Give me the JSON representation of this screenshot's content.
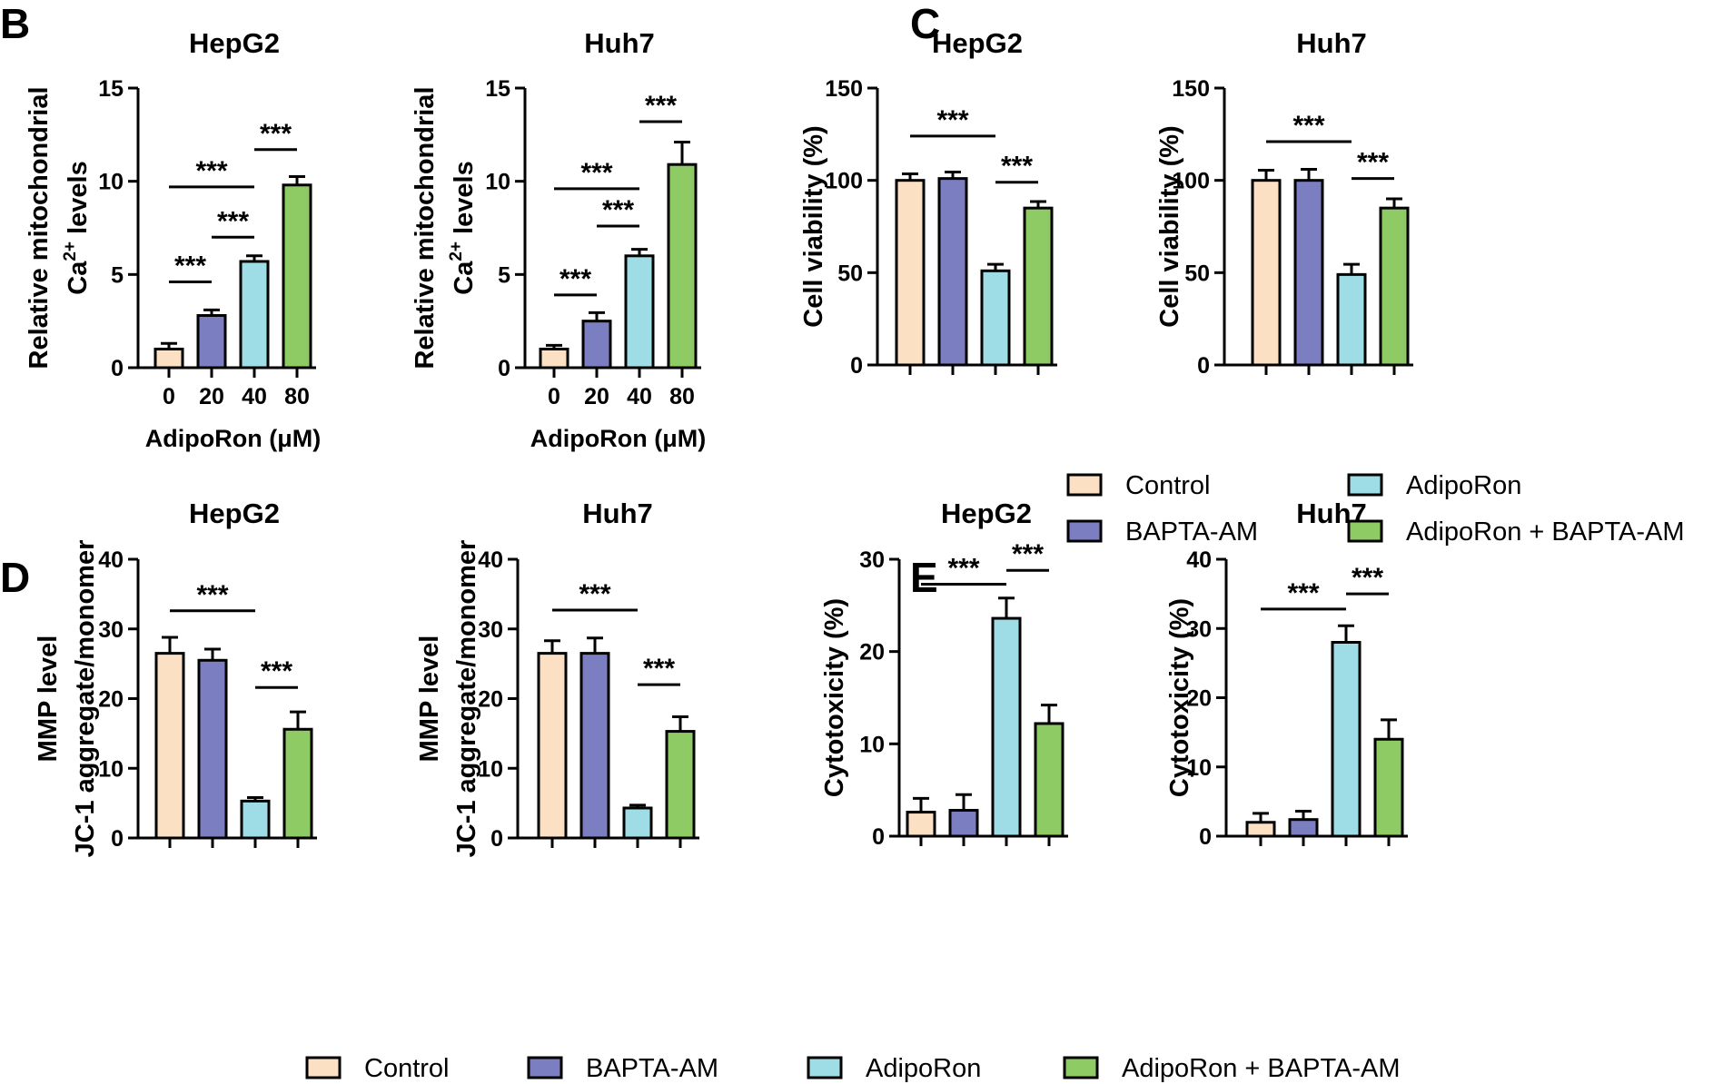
{
  "panels": [
    {
      "letter": "B"
    },
    {
      "letter": "C"
    },
    {
      "letter": "D"
    },
    {
      "letter": "E"
    }
  ],
  "colors": {
    "Control": "#fce0c4",
    "BAPTA-AM": "#7b7ec0",
    "AdipoRon": "#9fdde6",
    "AdipoRon + BAPTA-AM": "#8ecb65",
    "axis": "#000000"
  },
  "legend_c": [
    "Control",
    "AdipoRon",
    "BAPTA-AM",
    "AdipoRon + BAPTA-AM"
  ],
  "legend_bottom": [
    "Control",
    "BAPTA-AM",
    "AdipoRon",
    "AdipoRon + BAPTA-AM"
  ],
  "chart_data": [
    {
      "id": "B-HepG2",
      "type": "bar",
      "title": "HepG2",
      "ylabel": [
        "Relative mitochondrial",
        "Ca",
        "2+",
        " levels"
      ],
      "xlabel": "AdipoRon (μM)",
      "categories": [
        "0",
        "20",
        "40",
        "80"
      ],
      "groups": [
        "Control",
        "BAPTA-AM",
        "AdipoRon",
        "AdipoRon + BAPTA-AM"
      ],
      "values": [
        1.0,
        2.8,
        5.7,
        9.8
      ],
      "errors": [
        0.3,
        0.3,
        0.3,
        0.45
      ],
      "ylim": [
        0,
        15
      ],
      "yticks": [
        0,
        5,
        10,
        15
      ],
      "yticklabels": [
        "0",
        "5",
        "10",
        "15"
      ],
      "significance": [
        {
          "from": 0,
          "to": 1,
          "y": 4.6,
          "label": "***"
        },
        {
          "from": 1,
          "to": 2,
          "y": 7.0,
          "label": "***"
        },
        {
          "from": 0,
          "to": 2,
          "y": 9.7,
          "label": "***"
        },
        {
          "from": 2,
          "to": 3,
          "y": 11.7,
          "label": "***"
        }
      ]
    },
    {
      "id": "B-Huh7",
      "type": "bar",
      "title": "Huh7",
      "ylabel": [
        "Relative mitochondrial",
        "Ca",
        "2+",
        " levels"
      ],
      "xlabel": "AdipoRon (μM)",
      "categories": [
        "0",
        "20",
        "40",
        "80"
      ],
      "groups": [
        "Control",
        "BAPTA-AM",
        "AdipoRon",
        "AdipoRon + BAPTA-AM"
      ],
      "values": [
        1.0,
        2.5,
        6.0,
        10.9
      ],
      "errors": [
        0.2,
        0.45,
        0.35,
        1.2
      ],
      "ylim": [
        0,
        15
      ],
      "yticks": [
        0,
        5,
        10,
        15
      ],
      "yticklabels": [
        "0",
        "5",
        "10",
        "15"
      ],
      "significance": [
        {
          "from": 0,
          "to": 1,
          "y": 3.9,
          "label": "***"
        },
        {
          "from": 1,
          "to": 2,
          "y": 7.6,
          "label": "***"
        },
        {
          "from": 0,
          "to": 2,
          "y": 9.6,
          "label": "***"
        },
        {
          "from": 2,
          "to": 3,
          "y": 13.2,
          "label": "***"
        }
      ]
    },
    {
      "id": "C-HepG2",
      "type": "bar",
      "title": "HepG2",
      "ylabel": [
        "Cell viability (%)"
      ],
      "xlabel": "",
      "categories": [
        "",
        "",
        "",
        ""
      ],
      "groups": [
        "Control",
        "BAPTA-AM",
        "AdipoRon",
        "AdipoRon + BAPTA-AM"
      ],
      "values": [
        100,
        101,
        51,
        85
      ],
      "errors": [
        3.5,
        3.5,
        3.5,
        3.5
      ],
      "ylim": [
        0,
        150
      ],
      "yticks": [
        0,
        50,
        100,
        150
      ],
      "yticklabels": [
        "0",
        "50",
        "100",
        "150"
      ],
      "significance": [
        {
          "from": 0,
          "to": 2,
          "y": 124,
          "label": "***"
        },
        {
          "from": 2,
          "to": 3,
          "y": 99,
          "label": "***"
        }
      ]
    },
    {
      "id": "C-Huh7",
      "type": "bar",
      "title": "Huh7",
      "ylabel": [
        "Cell viability (%)"
      ],
      "xlabel": "",
      "categories": [
        "",
        "",
        "",
        ""
      ],
      "groups": [
        "Control",
        "BAPTA-AM",
        "AdipoRon",
        "AdipoRon + BAPTA-AM"
      ],
      "values": [
        100,
        100,
        49,
        85
      ],
      "errors": [
        5.5,
        6,
        5.5,
        5
      ],
      "ylim": [
        0,
        150
      ],
      "yticks": [
        0,
        50,
        100,
        150
      ],
      "yticklabels": [
        "0",
        "50",
        "100",
        "150"
      ],
      "significance": [
        {
          "from": 0,
          "to": 2,
          "y": 121,
          "label": "***"
        },
        {
          "from": 2,
          "to": 3,
          "y": 101,
          "label": "***"
        }
      ]
    },
    {
      "id": "D-HepG2",
      "type": "bar",
      "title": "HepG2",
      "ylabel": [
        "MMP level",
        "JC-1 aggregate/monomer"
      ],
      "xlabel": "",
      "categories": [
        "",
        "",
        "",
        ""
      ],
      "groups": [
        "Control",
        "BAPTA-AM",
        "AdipoRon",
        "AdipoRon + BAPTA-AM"
      ],
      "values": [
        26.5,
        25.5,
        5.3,
        15.6
      ],
      "errors": [
        2.3,
        1.6,
        0.5,
        2.5
      ],
      "ylim": [
        0,
        40
      ],
      "yticks": [
        0,
        10,
        20,
        30,
        40
      ],
      "yticklabels": [
        "0",
        "10",
        "20",
        "30",
        "40"
      ],
      "significance": [
        {
          "from": 0,
          "to": 2,
          "y": 32.6,
          "label": "***"
        },
        {
          "from": 2,
          "to": 3,
          "y": 21.6,
          "label": "***"
        }
      ]
    },
    {
      "id": "D-Huh7",
      "type": "bar",
      "title": "Huh7",
      "ylabel": [
        "MMP level",
        "JC-1 aggregate/monomer"
      ],
      "xlabel": "",
      "categories": [
        "",
        "",
        "",
        ""
      ],
      "groups": [
        "Control",
        "BAPTA-AM",
        "AdipoRon",
        "AdipoRon + BAPTA-AM"
      ],
      "values": [
        26.5,
        26.5,
        4.3,
        15.3
      ],
      "errors": [
        1.8,
        2.2,
        0.4,
        2.1
      ],
      "ylim": [
        0,
        40
      ],
      "yticks": [
        0,
        10,
        20,
        30,
        40
      ],
      "yticklabels": [
        "0",
        "10",
        "20",
        "30",
        "40"
      ],
      "significance": [
        {
          "from": 0,
          "to": 2,
          "y": 32.7,
          "label": "***"
        },
        {
          "from": 2,
          "to": 3,
          "y": 22.0,
          "label": "***"
        }
      ]
    },
    {
      "id": "E-HepG2",
      "type": "bar",
      "title": "HepG2",
      "ylabel": [
        "Cytotoxicity (%)"
      ],
      "xlabel": "",
      "categories": [
        "",
        "",
        "",
        ""
      ],
      "groups": [
        "Control",
        "BAPTA-AM",
        "AdipoRon",
        "AdipoRon + BAPTA-AM"
      ],
      "values": [
        2.6,
        2.8,
        23.6,
        12.2
      ],
      "errors": [
        1.5,
        1.7,
        2.2,
        2.0
      ],
      "ylim": [
        0,
        30
      ],
      "yticks": [
        0,
        10,
        20,
        30
      ],
      "yticklabels": [
        "0",
        "10",
        "20",
        "30"
      ],
      "significance": [
        {
          "from": 0,
          "to": 2,
          "y": 27.3,
          "label": "***"
        },
        {
          "from": 2,
          "to": 3,
          "y": 28.8,
          "label": "***"
        }
      ]
    },
    {
      "id": "E-Huh7",
      "type": "bar",
      "title": "Huh7",
      "ylabel": [
        "Cytotoxicity (%)"
      ],
      "xlabel": "",
      "categories": [
        "",
        "",
        "",
        ""
      ],
      "groups": [
        "Control",
        "BAPTA-AM",
        "AdipoRon",
        "AdipoRon + BAPTA-AM"
      ],
      "values": [
        2.0,
        2.4,
        28.0,
        14.0
      ],
      "errors": [
        1.3,
        1.2,
        2.4,
        2.8
      ],
      "ylim": [
        0,
        40
      ],
      "yticks": [
        0,
        10,
        20,
        30,
        40
      ],
      "yticklabels": [
        "0",
        "10",
        "20",
        "30",
        "40"
      ],
      "significance": [
        {
          "from": 0,
          "to": 2,
          "y": 32.8,
          "label": "***"
        },
        {
          "from": 2,
          "to": 3,
          "y": 35.0,
          "label": "***"
        }
      ]
    }
  ]
}
